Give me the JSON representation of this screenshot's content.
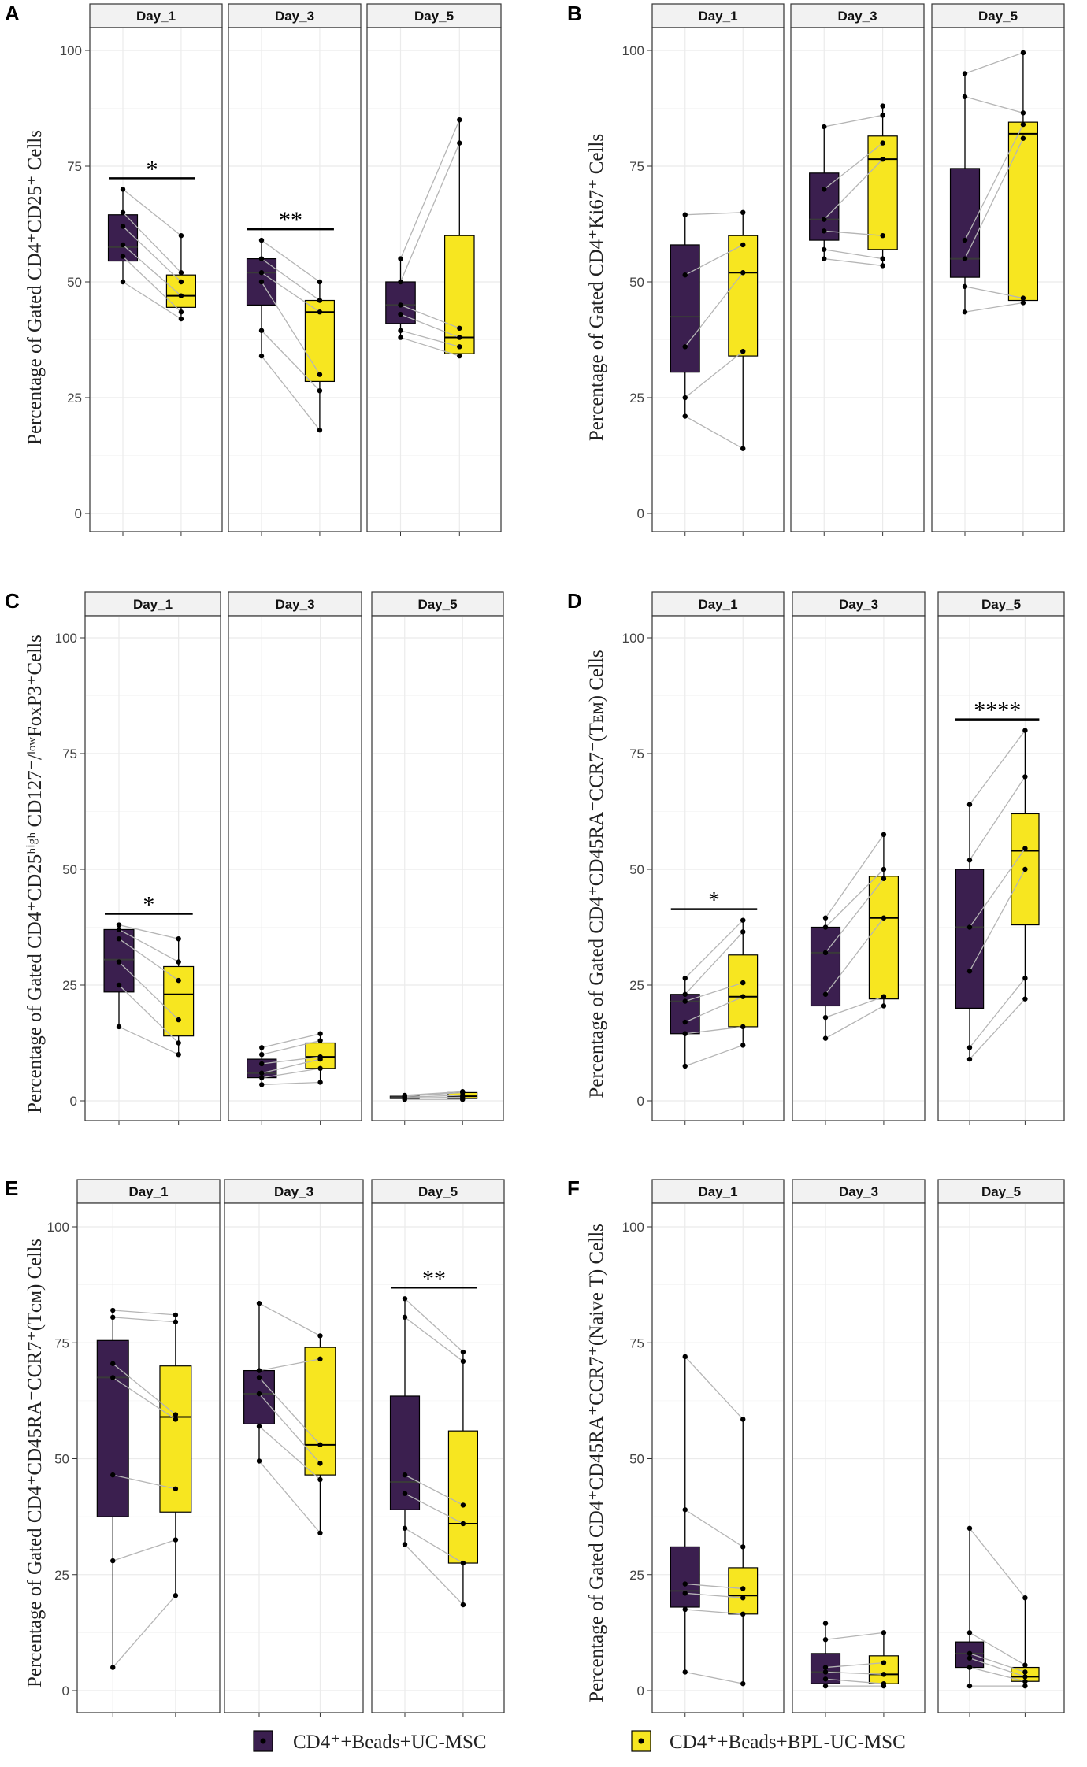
{
  "chart_data": [
    {
      "id": "A",
      "type": "box",
      "panel_label": "A",
      "ylabel": "Percentage of Gated CD4⁺CD25⁺ Cells",
      "ylim": [
        0,
        100
      ],
      "yticks": [
        0,
        25,
        50,
        75,
        100
      ],
      "facets": [
        {
          "name": "Day_1",
          "significance": "*",
          "groups": [
            {
              "box": [
                54.5,
                57.5,
                64.5
              ],
              "whiskers": [
                50,
                70
              ],
              "points": [
                50,
                55.5,
                58,
                62,
                65,
                70
              ]
            },
            {
              "box": [
                44.5,
                47,
                51.5
              ],
              "whiskers": [
                42,
                60
              ],
              "points": [
                42,
                43.5,
                47,
                50,
                52,
                60
              ]
            }
          ]
        },
        {
          "name": "Day_3",
          "significance": "**",
          "groups": [
            {
              "box": [
                45,
                52,
                55
              ],
              "whiskers": [
                34,
                59
              ],
              "points": [
                34,
                39.5,
                50,
                52,
                55,
                59
              ]
            },
            {
              "box": [
                28.5,
                43.5,
                46
              ],
              "whiskers": [
                18,
                50
              ],
              "points": [
                18,
                26.5,
                30,
                43.5,
                46,
                50
              ]
            }
          ]
        },
        {
          "name": "Day_5",
          "significance": "",
          "groups": [
            {
              "box": [
                41,
                45,
                50
              ],
              "whiskers": [
                38,
                55
              ],
              "points": [
                38,
                39.5,
                43,
                45,
                50,
                55
              ]
            },
            {
              "box": [
                34.5,
                38,
                60
              ],
              "whiskers": [
                34,
                85
              ],
              "points": [
                34,
                36,
                38,
                40,
                80,
                85
              ]
            }
          ]
        }
      ]
    },
    {
      "id": "B",
      "type": "box",
      "panel_label": "B",
      "ylabel": "Percentage of Gated CD4⁺Ki67⁺ Cells",
      "ylim": [
        0,
        100
      ],
      "yticks": [
        0,
        25,
        50,
        75,
        100
      ],
      "facets": [
        {
          "name": "Day_1",
          "significance": "",
          "groups": [
            {
              "box": [
                30.5,
                42.5,
                58
              ],
              "whiskers": [
                21,
                64.5
              ],
              "points": [
                21,
                25,
                36,
                51.5,
                64.5
              ]
            },
            {
              "box": [
                34,
                52,
                60
              ],
              "whiskers": [
                14,
                65
              ],
              "points": [
                14,
                35,
                52,
                58,
                65
              ]
            }
          ]
        },
        {
          "name": "Day_3",
          "significance": "",
          "groups": [
            {
              "box": [
                59,
                63.5,
                73.5
              ],
              "whiskers": [
                55,
                83.5
              ],
              "points": [
                55,
                57,
                61,
                63.5,
                70,
                83.5
              ]
            },
            {
              "box": [
                57,
                76.5,
                81.5
              ],
              "whiskers": [
                53.5,
                88
              ],
              "points": [
                53.5,
                55,
                60,
                76.5,
                80,
                86,
                88
              ]
            }
          ]
        },
        {
          "name": "Day_5",
          "significance": "",
          "groups": [
            {
              "box": [
                51,
                55,
                74.5
              ],
              "whiskers": [
                43.5,
                95
              ],
              "points": [
                43.5,
                49,
                55,
                59,
                90,
                95
              ]
            },
            {
              "box": [
                46,
                82,
                84.5
              ],
              "whiskers": [
                45.5,
                99.5
              ],
              "points": [
                45.5,
                46.5,
                81,
                84,
                86.5,
                99.5
              ]
            }
          ]
        }
      ]
    },
    {
      "id": "C",
      "type": "box",
      "panel_label": "C",
      "ylabel": "Percentage of Gated CD4⁺CD25ʰⁱᵍʰ CD127⁻/ˡᵒʷFoxP3⁺Cells",
      "ylim": [
        0,
        100
      ],
      "yticks": [
        0,
        25,
        50,
        75,
        100
      ],
      "facets": [
        {
          "name": "Day_1",
          "significance": "*",
          "groups": [
            {
              "box": [
                23.5,
                30.5,
                37
              ],
              "whiskers": [
                16,
                38
              ],
              "points": [
                16,
                25,
                30,
                35,
                37,
                38
              ]
            },
            {
              "box": [
                14,
                23,
                29
              ],
              "whiskers": [
                10,
                35
              ],
              "points": [
                10,
                12.5,
                17.5,
                26,
                30,
                35
              ]
            }
          ]
        },
        {
          "name": "Day_3",
          "significance": "",
          "groups": [
            {
              "box": [
                5,
                6,
                9
              ],
              "whiskers": [
                3.5,
                11.5
              ],
              "points": [
                3.5,
                5,
                6,
                8,
                10,
                11.5
              ]
            },
            {
              "box": [
                7,
                9.5,
                12.5
              ],
              "whiskers": [
                4,
                14.5
              ],
              "points": [
                4,
                7,
                9,
                9.5,
                13,
                14.5
              ]
            }
          ]
        },
        {
          "name": "Day_5",
          "significance": "",
          "groups": [
            {
              "box": [
                0.5,
                0.8,
                1
              ],
              "whiskers": [
                0.3,
                1.2
              ],
              "points": [
                0.3,
                0.6,
                0.8,
                1,
                1.2
              ]
            },
            {
              "box": [
                0.5,
                1,
                1.8
              ],
              "whiskers": [
                0.3,
                2
              ],
              "points": [
                0.3,
                0.8,
                1.2,
                1.8,
                2
              ]
            }
          ]
        }
      ]
    },
    {
      "id": "D",
      "type": "box",
      "panel_label": "D",
      "ylabel": "Percentage of Gated CD4⁺CD45RA⁻CCR7⁻(Tᴇᴍ) Cells",
      "ylim": [
        0,
        100
      ],
      "yticks": [
        0,
        25,
        50,
        75,
        100
      ],
      "facets": [
        {
          "name": "Day_1",
          "significance": "*",
          "groups": [
            {
              "box": [
                14.5,
                21.5,
                23
              ],
              "whiskers": [
                7.5,
                26.5
              ],
              "points": [
                7.5,
                14.5,
                17,
                21.5,
                23,
                26.5
              ]
            },
            {
              "box": [
                16,
                22.5,
                31.5
              ],
              "whiskers": [
                12,
                39
              ],
              "points": [
                12,
                16,
                22.5,
                25.5,
                36.5,
                39
              ]
            }
          ]
        },
        {
          "name": "Day_3",
          "significance": "",
          "groups": [
            {
              "box": [
                20.5,
                32,
                37.5
              ],
              "whiskers": [
                13.5,
                39.5
              ],
              "points": [
                13.5,
                18,
                23,
                32,
                37.5,
                39.5
              ]
            },
            {
              "box": [
                22,
                39.5,
                48.5
              ],
              "whiskers": [
                20.5,
                57.5
              ],
              "points": [
                20.5,
                22.5,
                39.5,
                48,
                50,
                57.5
              ]
            }
          ]
        },
        {
          "name": "Day_5",
          "significance": "****",
          "groups": [
            {
              "box": [
                20,
                37.5,
                50
              ],
              "whiskers": [
                9,
                64
              ],
              "points": [
                9,
                11.5,
                28,
                37.5,
                52,
                64
              ]
            },
            {
              "box": [
                38,
                54,
                62
              ],
              "whiskers": [
                22,
                80
              ],
              "points": [
                22,
                26.5,
                50,
                54.5,
                70,
                80
              ]
            }
          ]
        }
      ]
    },
    {
      "id": "E",
      "type": "box",
      "panel_label": "E",
      "ylabel": "Percentage of Gated CD4⁺CD45RA⁻CCR7⁺(Tᴄᴍ) Cells",
      "ylim": [
        0,
        100
      ],
      "yticks": [
        0,
        25,
        50,
        75,
        100
      ],
      "facets": [
        {
          "name": "Day_1",
          "significance": "",
          "groups": [
            {
              "box": [
                37.5,
                67.5,
                75.5
              ],
              "whiskers": [
                5,
                82
              ],
              "points": [
                5,
                28,
                46.5,
                67.5,
                70.5,
                80.5,
                82
              ]
            },
            {
              "box": [
                38.5,
                59,
                70
              ],
              "whiskers": [
                20.5,
                81
              ],
              "points": [
                20.5,
                32.5,
                43.5,
                58.5,
                59.5,
                79.5,
                81
              ]
            }
          ]
        },
        {
          "name": "Day_3",
          "significance": "",
          "groups": [
            {
              "box": [
                57.5,
                64,
                69
              ],
              "whiskers": [
                49.5,
                83.5
              ],
              "points": [
                49.5,
                57,
                64,
                67.5,
                69,
                83.5
              ]
            },
            {
              "box": [
                46.5,
                53,
                74
              ],
              "whiskers": [
                34,
                76.5
              ],
              "points": [
                34,
                45.5,
                49,
                53,
                71.5,
                76.5
              ]
            }
          ]
        },
        {
          "name": "Day_5",
          "significance": "**",
          "groups": [
            {
              "box": [
                39,
                45,
                63.5
              ],
              "whiskers": [
                31.5,
                84.5
              ],
              "points": [
                31.5,
                35,
                42.5,
                46.5,
                80.5,
                84.5
              ]
            },
            {
              "box": [
                27.5,
                36,
                56
              ],
              "whiskers": [
                18.5,
                73
              ],
              "points": [
                18.5,
                27.5,
                36,
                40,
                71,
                73
              ]
            }
          ]
        }
      ]
    },
    {
      "id": "F",
      "type": "box",
      "panel_label": "F",
      "ylabel": "Percentage of Gated CD4⁺CD45RA⁺CCR7⁺(Naive T) Cells",
      "ylim": [
        0,
        100
      ],
      "yticks": [
        0,
        25,
        50,
        75,
        100
      ],
      "facets": [
        {
          "name": "Day_1",
          "significance": "",
          "groups": [
            {
              "box": [
                18,
                21.5,
                31
              ],
              "whiskers": [
                4,
                72
              ],
              "points": [
                4,
                17.5,
                21,
                23,
                39,
                72
              ]
            },
            {
              "box": [
                16.5,
                20.5,
                26.5
              ],
              "whiskers": [
                1.5,
                58.5
              ],
              "points": [
                1.5,
                16.5,
                20,
                22,
                31,
                58.5
              ]
            }
          ]
        },
        {
          "name": "Day_3",
          "significance": "",
          "groups": [
            {
              "box": [
                1.5,
                4,
                8
              ],
              "whiskers": [
                1,
                14.5
              ],
              "points": [
                1,
                2.5,
                4,
                5,
                11,
                14.5
              ]
            },
            {
              "box": [
                1.5,
                3.5,
                7.5
              ],
              "whiskers": [
                1,
                12.5
              ],
              "points": [
                1,
                1.5,
                3.5,
                6,
                12.5
              ]
            }
          ]
        },
        {
          "name": "Day_5",
          "significance": "",
          "groups": [
            {
              "box": [
                5,
                8,
                10.5
              ],
              "whiskers": [
                1,
                35
              ],
              "points": [
                1,
                5,
                7,
                8,
                12.5,
                35
              ]
            },
            {
              "box": [
                2,
                3,
                5
              ],
              "whiskers": [
                1,
                20
              ],
              "points": [
                1,
                2,
                3,
                4,
                5.5,
                20
              ]
            }
          ]
        }
      ]
    }
  ],
  "legend": {
    "items": [
      {
        "label": "CD4⁺+Beads+UC-MSC",
        "color": "#3b1f4f"
      },
      {
        "label": "CD4⁺+Beads+BPL-UC-MSC",
        "color": "#f7e620"
      }
    ]
  },
  "colors": {
    "group1": "#3b1f4f",
    "group2": "#f7e620",
    "strip": "#f2f2f2",
    "grid": "#ebebeb",
    "pair_line": "#b5b5b5"
  }
}
